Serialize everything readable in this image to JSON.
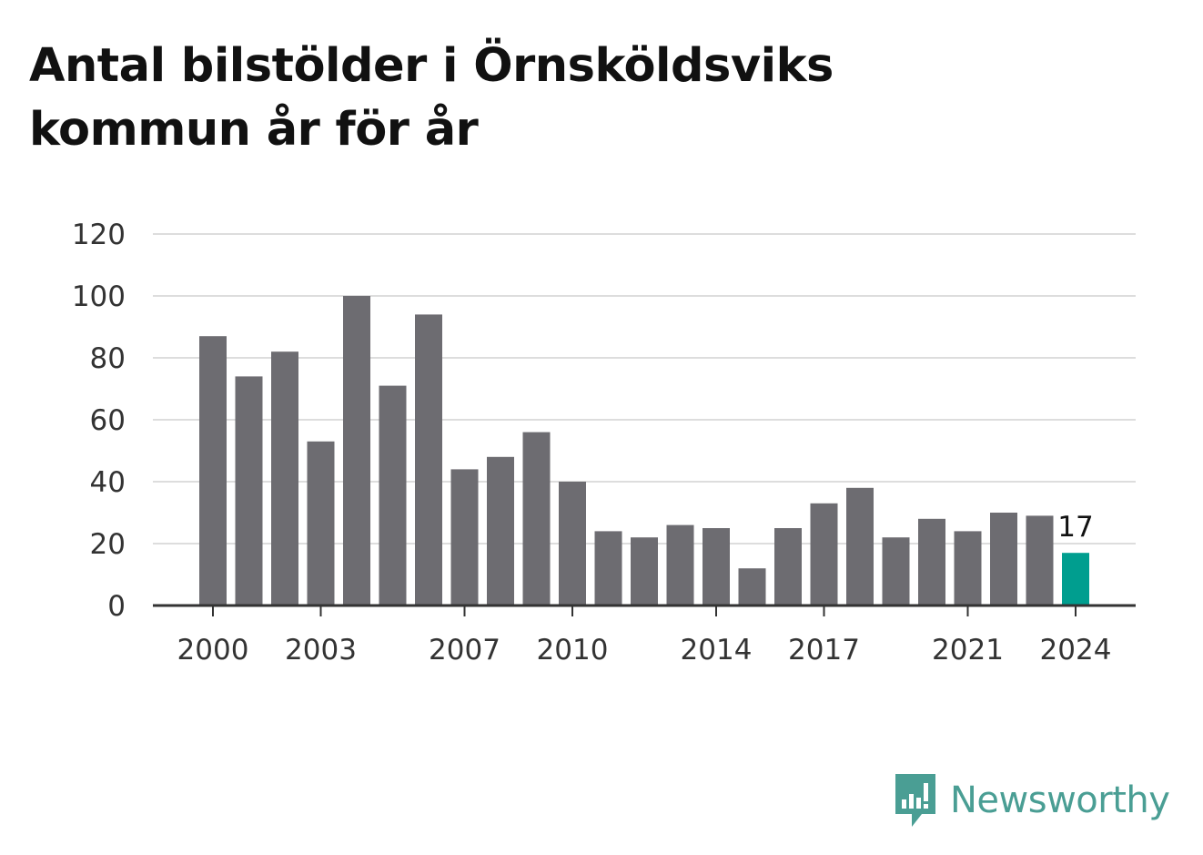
{
  "title": "Antal bilstölder i Örnsköldsviks kommun år för år",
  "brand": {
    "name": "Newsworthy",
    "color": "#4a9e94",
    "icon": "newsworthy-logo-icon"
  },
  "colors": {
    "bar": "#6d6c71",
    "highlight": "#009e8f",
    "grid": "#dddddd",
    "axis": "#333333"
  },
  "chart_data": {
    "type": "bar",
    "title": "Antal bilstölder i Örnsköldsviks kommun år för år",
    "xlabel": "",
    "ylabel": "",
    "categories": [
      "2000",
      "2001",
      "2002",
      "2003",
      "2004",
      "2005",
      "2006",
      "2007",
      "2008",
      "2009",
      "2010",
      "2011",
      "2012",
      "2013",
      "2014",
      "2015",
      "2016",
      "2017",
      "2018",
      "2019",
      "2020",
      "2021",
      "2022",
      "2023",
      "2024"
    ],
    "values": [
      87,
      74,
      82,
      53,
      100,
      71,
      94,
      44,
      48,
      56,
      40,
      24,
      22,
      26,
      25,
      12,
      25,
      33,
      38,
      22,
      28,
      24,
      30,
      29,
      17
    ],
    "x_tick_labels": [
      "2000",
      "2003",
      "2007",
      "2010",
      "2014",
      "2017",
      "2021",
      "2024"
    ],
    "y_ticks": [
      0,
      20,
      40,
      60,
      80,
      100,
      120
    ],
    "ylim": [
      0,
      120
    ],
    "grid": true,
    "highlight": {
      "category": "2024",
      "label": "17"
    }
  }
}
